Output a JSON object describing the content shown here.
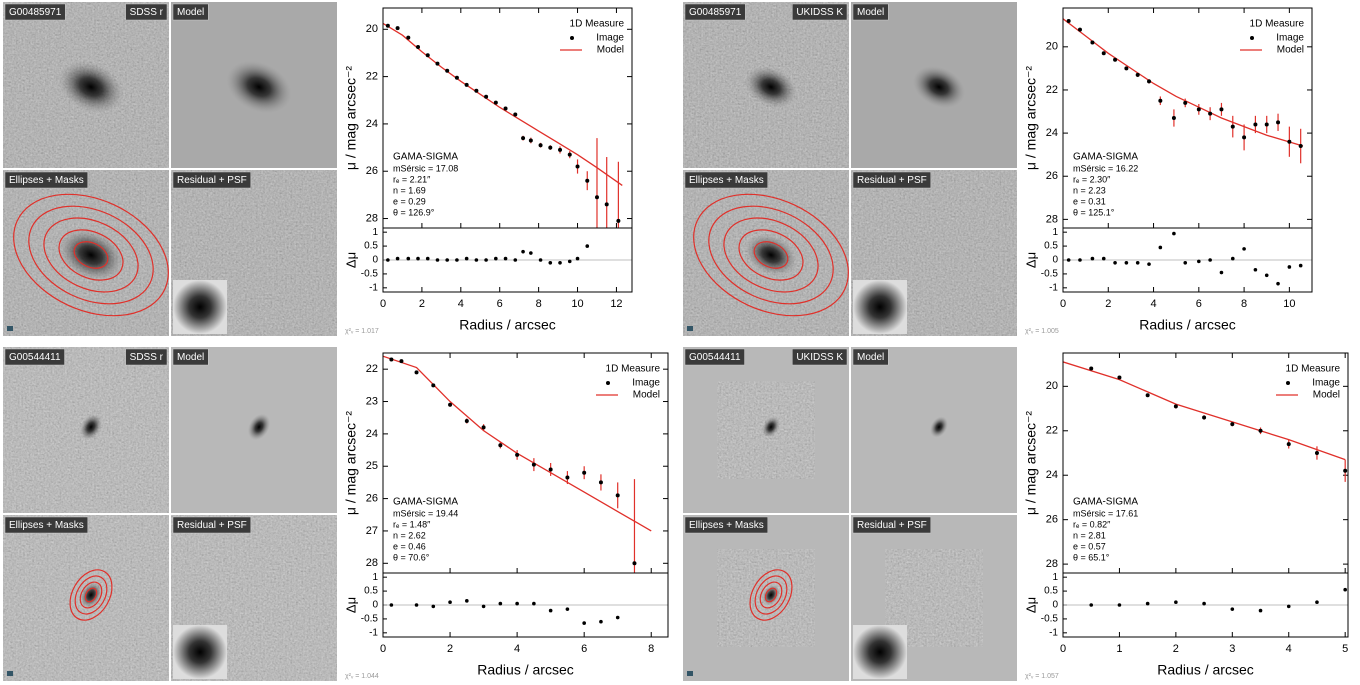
{
  "chart_data": [
    {
      "type": "profile",
      "id": "G00485971",
      "band": "SDSS r",
      "model_label": "Model",
      "ellipses_label": "Ellipses + Masks",
      "residual_label": "Residual + PSF",
      "chi": "χ²ᵥ = 1.017",
      "legend_title": "1D Measure",
      "xlabel": "Radius / arcsec",
      "ylabel": "μ / mag arcsec⁻²",
      "xlim": [
        0,
        12.8
      ],
      "xticks": [
        0,
        2,
        4,
        6,
        8,
        10,
        12
      ],
      "ylim": [
        19.1,
        28.4
      ],
      "yticks": [
        20,
        22,
        24,
        26,
        28
      ],
      "series": [
        {
          "name": "Image",
          "color": "#000000",
          "x": [
            0.25,
            0.75,
            1.3,
            1.8,
            2.3,
            2.8,
            3.3,
            3.8,
            4.3,
            4.8,
            5.3,
            5.8,
            6.3,
            6.8,
            7.2,
            7.6,
            8.1,
            8.6,
            9.1,
            9.6,
            10.0,
            10.5,
            11.0,
            11.5,
            12.1
          ],
          "values": [
            19.85,
            19.95,
            20.35,
            20.75,
            21.1,
            21.45,
            21.75,
            22.05,
            22.35,
            22.6,
            22.85,
            23.1,
            23.35,
            23.6,
            24.6,
            24.7,
            24.9,
            25.0,
            25.1,
            25.3,
            25.8,
            26.4,
            27.1,
            27.4,
            28.1
          ],
          "errors": [
            0.03,
            0.03,
            0.04,
            0.04,
            0.05,
            0.05,
            0.05,
            0.05,
            0.06,
            0.06,
            0.07,
            0.07,
            0.08,
            0.08,
            0.1,
            0.12,
            0.1,
            0.1,
            0.15,
            0.15,
            0.3,
            0.4,
            2.5,
            2.0,
            2.5
          ]
        },
        {
          "name": "Model",
          "color": "#e0302a",
          "x": [
            0,
            1,
            2,
            3,
            4,
            5,
            6,
            7,
            8,
            9,
            10,
            11,
            12.3
          ],
          "values": [
            19.75,
            20.25,
            20.95,
            21.6,
            22.2,
            22.75,
            23.3,
            23.8,
            24.3,
            24.8,
            25.3,
            25.85,
            26.6
          ]
        }
      ],
      "fit_title": "GAMA-SIGMA",
      "fit_lines": [
        "mSérsic = 17.08",
        "rₑ = 2.21″",
        "n = 1.69",
        "e = 0.29",
        "θ = 126.9°"
      ],
      "residual": {
        "ylabel": "Δμ",
        "ylim": [
          -1.15,
          1.15
        ],
        "yticks": [
          -1,
          -0.5,
          0,
          0.5,
          1
        ],
        "x": [
          0.25,
          0.75,
          1.3,
          1.8,
          2.3,
          2.8,
          3.3,
          3.8,
          4.3,
          4.8,
          5.3,
          5.8,
          6.3,
          6.8,
          7.2,
          7.6,
          8.1,
          8.6,
          9.1,
          9.6,
          10.0,
          10.5
        ],
        "values": [
          0,
          0.05,
          0.05,
          0.05,
          0.05,
          0,
          0,
          0,
          0.05,
          0,
          0,
          0.05,
          0.05,
          0,
          0.3,
          0.25,
          0,
          -0.1,
          -0.1,
          -0.05,
          0.05,
          0.5
        ]
      }
    },
    {
      "type": "profile",
      "id": "G00485971",
      "band": "UKIDSS K",
      "model_label": "Model",
      "ellipses_label": "Ellipses + Masks",
      "residual_label": "Residual + PSF",
      "chi": "χ²ᵥ = 1.005",
      "legend_title": "1D Measure",
      "xlabel": "Radius / arcsec",
      "ylabel": "μ / mag arcsec⁻²",
      "xlim": [
        0,
        11
      ],
      "xticks": [
        0,
        2,
        4,
        6,
        8,
        10
      ],
      "ylim": [
        18.2,
        28.4
      ],
      "yticks": [
        20,
        22,
        24,
        26,
        28
      ],
      "series": [
        {
          "name": "Image",
          "color": "#000000",
          "x": [
            0.25,
            0.75,
            1.3,
            1.8,
            2.3,
            2.8,
            3.3,
            3.8,
            4.3,
            4.9,
            5.4,
            6.0,
            6.5,
            7.0,
            7.5,
            8.0,
            8.5,
            9.0,
            9.5,
            10.0,
            10.5
          ],
          "values": [
            18.8,
            19.2,
            19.8,
            20.3,
            20.6,
            21.0,
            21.3,
            21.6,
            22.5,
            23.3,
            22.6,
            22.9,
            23.1,
            22.9,
            23.7,
            24.2,
            23.6,
            23.6,
            23.5,
            24.4,
            24.6
          ],
          "errors": [
            0.02,
            0.03,
            0.05,
            0.05,
            0.06,
            0.08,
            0.1,
            0.1,
            0.2,
            0.4,
            0.2,
            0.25,
            0.3,
            0.3,
            0.5,
            0.6,
            0.4,
            0.4,
            0.4,
            0.7,
            0.8
          ]
        },
        {
          "name": "Model",
          "color": "#e0302a",
          "x": [
            0,
            1,
            2,
            3,
            4,
            5,
            6,
            7,
            8,
            9,
            10.6
          ],
          "values": [
            18.7,
            19.5,
            20.3,
            21.0,
            21.7,
            22.3,
            22.8,
            23.3,
            23.7,
            24.1,
            24.6
          ]
        }
      ],
      "fit_title": "GAMA-SIGMA",
      "fit_lines": [
        "mSérsic = 16.22",
        "rₑ = 2.30″",
        "n = 2.23",
        "e = 0.31",
        "θ = 125.1°"
      ],
      "residual": {
        "ylabel": "Δμ",
        "ylim": [
          -1.15,
          1.15
        ],
        "yticks": [
          -1,
          -0.5,
          0,
          0.5,
          1
        ],
        "x": [
          0.25,
          0.75,
          1.3,
          1.8,
          2.3,
          2.8,
          3.3,
          3.8,
          4.3,
          4.9,
          5.4,
          6.0,
          6.5,
          7.0,
          7.5,
          8.0,
          8.5,
          9.0,
          9.5,
          10.0,
          10.5
        ],
        "values": [
          0,
          0,
          0.05,
          0.05,
          -0.1,
          -0.1,
          -0.1,
          -0.15,
          0.45,
          0.95,
          -0.1,
          -0.05,
          0,
          -0.45,
          0.05,
          0.4,
          -0.35,
          -0.55,
          -0.85,
          -0.25,
          -0.2
        ]
      }
    },
    {
      "type": "profile",
      "id": "G00544411",
      "band": "SDSS r",
      "model_label": "Model",
      "ellipses_label": "Ellipses + Masks",
      "residual_label": "Residual + PSF",
      "chi": "χ²ᵥ = 1.044",
      "legend_title": "1D Measure",
      "xlabel": "Radius / arcsec",
      "ylabel": "μ / mag arcsec⁻²",
      "xlim": [
        0,
        8.5
      ],
      "xticks": [
        0,
        2,
        4,
        6,
        8
      ],
      "ylim": [
        21.5,
        28.3
      ],
      "yticks": [
        22,
        23,
        24,
        25,
        26,
        27,
        28
      ],
      "series": [
        {
          "name": "Image",
          "color": "#000000",
          "x": [
            0.25,
            0.55,
            1.0,
            1.5,
            2.0,
            2.5,
            3.0,
            3.5,
            4.0,
            4.5,
            5.0,
            5.5,
            6.0,
            6.5,
            7.0,
            7.5
          ],
          "values": [
            21.7,
            21.75,
            22.1,
            22.5,
            23.1,
            23.6,
            23.8,
            24.35,
            24.65,
            24.95,
            25.1,
            25.35,
            25.2,
            25.5,
            25.9,
            28.0
          ],
          "errors": [
            0.02,
            0.03,
            0.04,
            0.05,
            0.06,
            0.08,
            0.1,
            0.1,
            0.15,
            0.2,
            0.2,
            0.2,
            0.2,
            0.25,
            0.4,
            2.6
          ]
        },
        {
          "name": "Model",
          "color": "#e0302a",
          "x": [
            0,
            1,
            2,
            3,
            4,
            5,
            6,
            7,
            8
          ],
          "values": [
            21.6,
            21.95,
            23.0,
            23.9,
            24.6,
            25.2,
            25.8,
            26.4,
            27.0
          ]
        }
      ],
      "fit_title": "GAMA-SIGMA",
      "fit_lines": [
        "mSérsic = 19.44",
        "rₑ = 1.48″",
        "n = 2.62",
        "e = 0.46",
        "θ = 70.6°"
      ],
      "residual": {
        "ylabel": "Δμ",
        "ylim": [
          -1.15,
          1.15
        ],
        "yticks": [
          -1,
          -0.5,
          0,
          0.5,
          1
        ],
        "x": [
          0.25,
          1.0,
          1.5,
          2.0,
          2.5,
          3.0,
          3.5,
          4.0,
          4.5,
          5.0,
          5.5,
          6.0,
          6.5,
          7.0
        ],
        "values": [
          0,
          0,
          -0.05,
          0.1,
          0.15,
          -0.05,
          0.05,
          0.05,
          0.05,
          -0.2,
          -0.15,
          -0.65,
          -0.6,
          -0.45
        ]
      }
    },
    {
      "type": "profile",
      "id": "G00544411",
      "band": "UKIDSS K",
      "model_label": "Model",
      "ellipses_label": "Ellipses + Masks",
      "residual_label": "Residual + PSF",
      "chi": "χ²ᵥ = 1.057",
      "legend_title": "1D Measure",
      "xlabel": "Radius / arcsec",
      "ylabel": "μ / mag arcsec⁻²",
      "xlim": [
        0,
        5.05
      ],
      "xticks": [
        0,
        1,
        2,
        3,
        4,
        5
      ],
      "ylim": [
        18.5,
        28.4
      ],
      "yticks": [
        20,
        22,
        24,
        26,
        28
      ],
      "series": [
        {
          "name": "Image",
          "color": "#000000",
          "x": [
            0.5,
            1.0,
            1.5,
            2.0,
            2.5,
            3.0,
            3.5,
            4.0,
            4.5,
            5.0
          ],
          "values": [
            19.2,
            19.6,
            20.4,
            20.9,
            21.4,
            21.7,
            22.0,
            22.6,
            23.0,
            23.8
          ],
          "errors": [
            0.03,
            0.05,
            0.07,
            0.1,
            0.1,
            0.1,
            0.15,
            0.2,
            0.3,
            0.5
          ]
        },
        {
          "name": "Model",
          "color": "#e0302a",
          "x": [
            0,
            1,
            2,
            3,
            4,
            5
          ],
          "values": [
            18.9,
            19.7,
            20.8,
            21.6,
            22.4,
            23.3
          ]
        }
      ],
      "fit_title": "GAMA-SIGMA",
      "fit_lines": [
        "mSérsic = 17.61",
        "rₑ = 0.82″",
        "n = 2.81",
        "e = 0.57",
        "θ = 65.1°"
      ],
      "residual": {
        "ylabel": "Δμ",
        "ylim": [
          -1.15,
          1.15
        ],
        "yticks": [
          -1,
          -0.5,
          0,
          0.5,
          1
        ],
        "x": [
          0.5,
          1.0,
          1.5,
          2.0,
          2.5,
          3.0,
          3.5,
          4.0,
          4.5,
          5.0
        ],
        "values": [
          0,
          0,
          0.05,
          0.1,
          0.05,
          -0.15,
          -0.2,
          -0.05,
          0.1,
          0.55
        ]
      }
    }
  ]
}
